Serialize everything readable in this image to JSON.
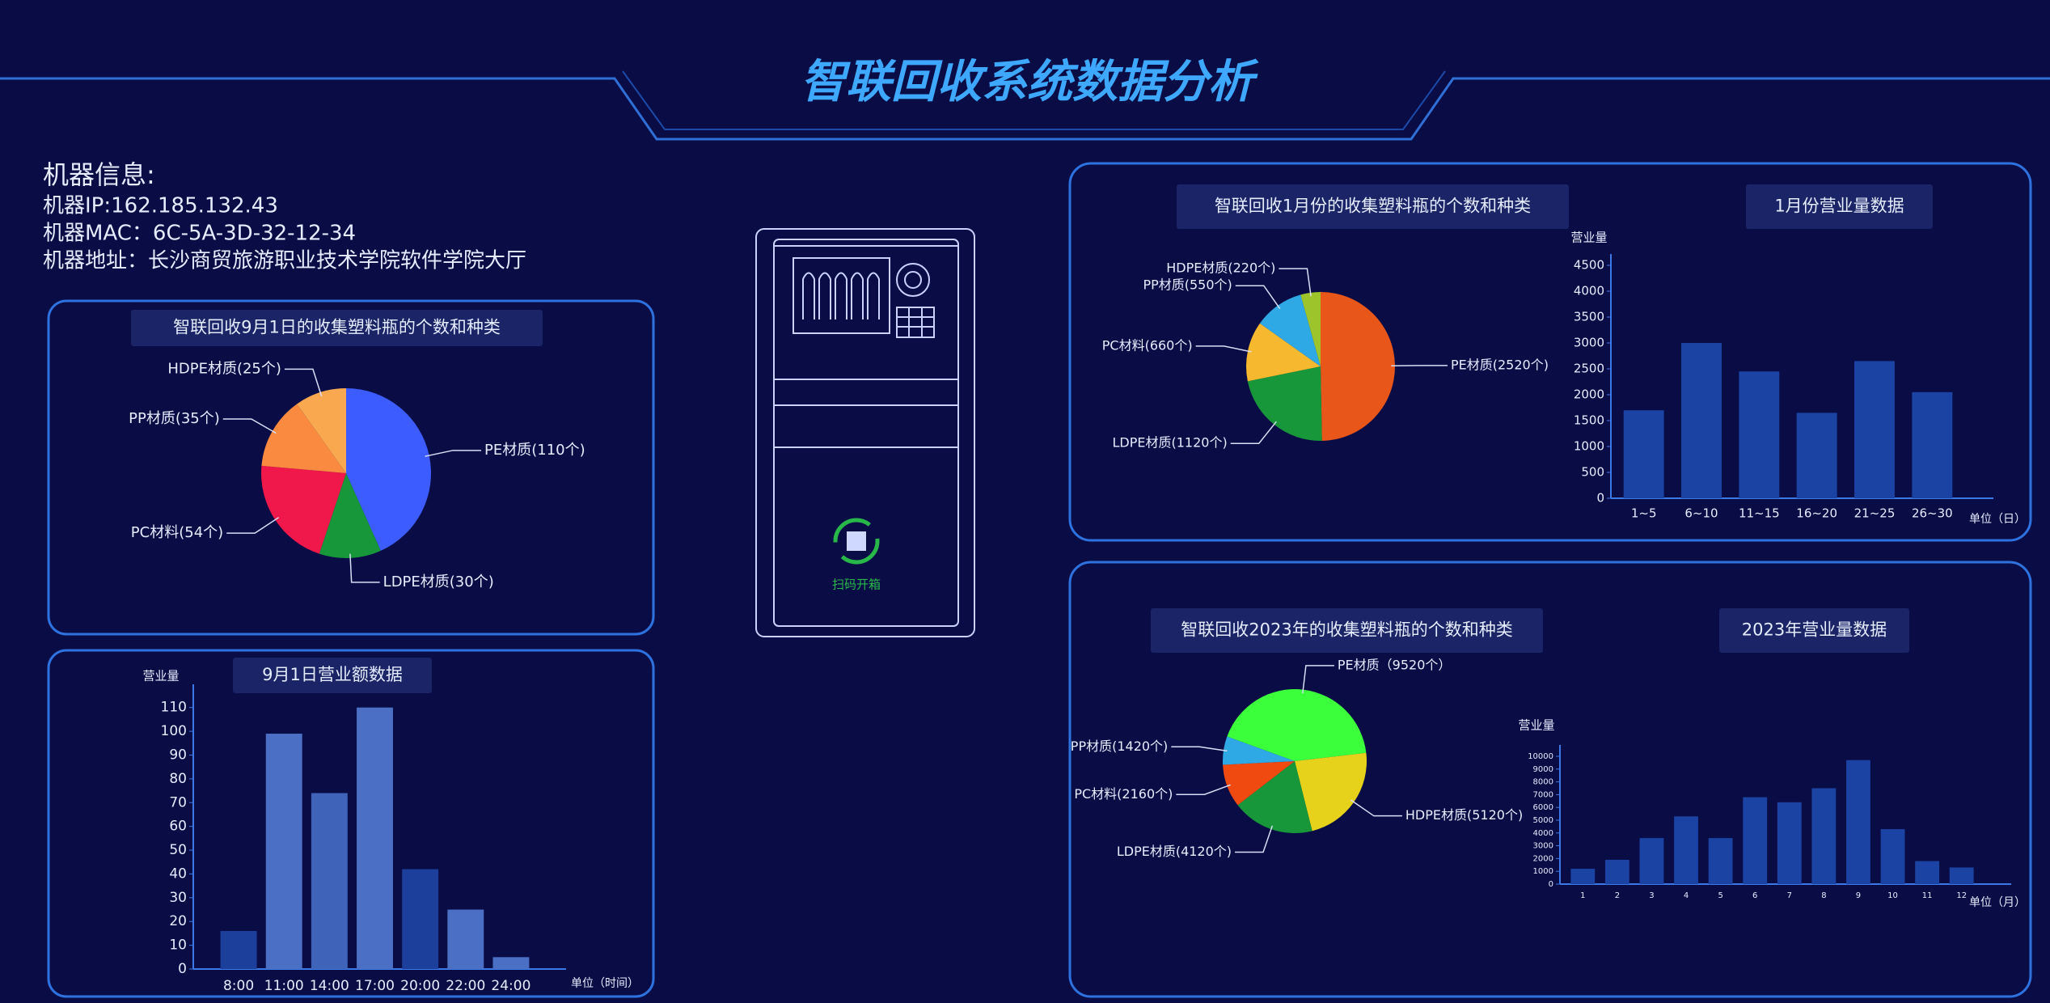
{
  "title": "智联回收系统数据分析",
  "machine_info": {
    "heading": "机器信息:",
    "lines": [
      "机器IP:162.185.132.43",
      "机器MAC：6C-5A-3D-32-12-34",
      "机器地址：长沙商贸旅游职业技术学院软件学院大厅"
    ]
  },
  "device_label": "扫码开箱",
  "chart_data": [
    {
      "type": "pie",
      "title": "智联回收9月1日的收集塑料瓶的个数和种类",
      "values": [
        110,
        30,
        54,
        35,
        25
      ],
      "value_labels": [
        "PE材质(110个)",
        "LDPE材质(30个)",
        "PC材料(54个)",
        "PP材质(35个)",
        "HDPE材质(25个)"
      ],
      "colors": [
        "#3d5cff",
        "#17973a",
        "#f0184a",
        "#f98a40",
        "#f9a850"
      ]
    },
    {
      "type": "bar",
      "title": "9月1日营业额数据",
      "y_label": "营业量",
      "x_unit": "单位（时间）",
      "categories": [
        "8:00",
        "11:00",
        "14:00",
        "17:00",
        "20:00",
        "22:00",
        "24:00"
      ],
      "values": [
        16,
        99,
        74,
        110,
        42,
        25,
        5
      ],
      "colors": [
        "#1d3f9c",
        "#4a6fc4",
        "#3e63b8",
        "#4a6fc4",
        "#1d3f9c",
        "#4a6fc4",
        "#4a6fc4"
      ],
      "ylim": [
        0,
        115
      ],
      "yticks": [
        0,
        10,
        20,
        30,
        40,
        50,
        60,
        70,
        80,
        90,
        100,
        110
      ]
    },
    {
      "type": "pie",
      "title": "智联回收1月份的收集塑料瓶的个数和种类",
      "values": [
        2520,
        1120,
        660,
        550,
        220
      ],
      "value_labels": [
        "PE材质(2520个)",
        "LDPE材质(1120个)",
        "PC材料(660个)",
        "PP材质(550个)",
        "HDPE材质(220个)"
      ],
      "colors": [
        "#e8561a",
        "#17973a",
        "#f5b82e",
        "#2fa8e6",
        "#9dc42a"
      ]
    },
    {
      "type": "bar",
      "title": "1月份营业量数据",
      "y_label": "营业量",
      "x_unit": "单位（日）",
      "categories": [
        "1~5",
        "6~10",
        "11~15",
        "16~20",
        "21~25",
        "26~30"
      ],
      "values": [
        1700,
        3000,
        2450,
        1650,
        2650,
        2050
      ],
      "colors": [
        "#1b43a3",
        "#1b43a3",
        "#1b43a3",
        "#1b43a3",
        "#1b43a3",
        "#1b43a3"
      ],
      "ylim": [
        0,
        4500
      ],
      "yticks": [
        0,
        500,
        1000,
        1500,
        2000,
        2500,
        3000,
        3500,
        4000,
        4500
      ]
    },
    {
      "type": "pie",
      "title": "智联回收2023年的收集塑料瓶的个数和种类",
      "values": [
        9520,
        5120,
        4120,
        2160,
        1420
      ],
      "value_labels": [
        "PE材质（9520个）",
        "HDPE材质(5120个)",
        "LDPE材质(4120个)",
        "PC材料(2160个)",
        "PP材质(1420个)"
      ],
      "colors": [
        "#3cff3c",
        "#e6d21a",
        "#17973a",
        "#f04a10",
        "#2fa8e6"
      ]
    },
    {
      "type": "bar",
      "title": "2023年营业量数据",
      "y_label": "营业量",
      "x_unit": "单位（月）",
      "categories": [
        "1",
        "2",
        "3",
        "4",
        "5",
        "6",
        "7",
        "8",
        "9",
        "10",
        "11",
        "12"
      ],
      "values": [
        1200,
        1900,
        3600,
        5300,
        3600,
        6800,
        6400,
        7500,
        9700,
        4300,
        1800,
        1300
      ],
      "colors": [
        "#1b43a3",
        "#1b43a3",
        "#1b43a3",
        "#1b43a3",
        "#1b43a3",
        "#1b43a3",
        "#1b43a3",
        "#1b43a3",
        "#1b43a3",
        "#1b43a3",
        "#1b43a3",
        "#1b43a3"
      ],
      "ylim": [
        0,
        10000
      ],
      "yticks": [
        0,
        1000,
        2000,
        3000,
        4000,
        5000,
        6000,
        7000,
        8000,
        9000,
        10000
      ]
    }
  ]
}
